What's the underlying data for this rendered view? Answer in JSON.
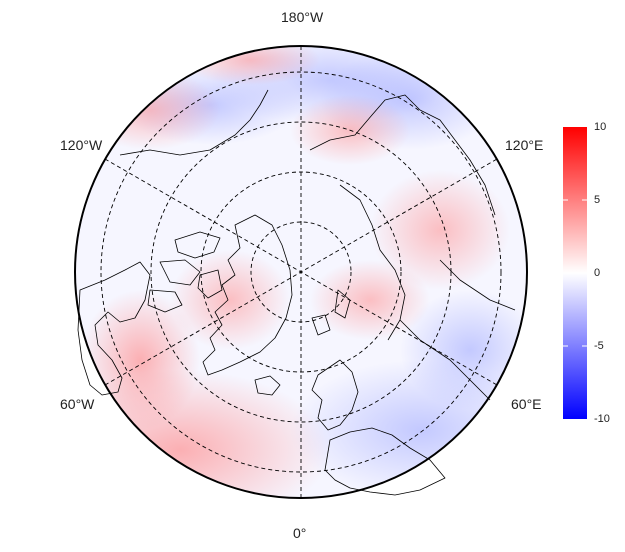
{
  "map": {
    "projection": "north-polar-stereographic",
    "longitude_labels": {
      "top": "180°W",
      "bottom": "0°",
      "upper_left": "120°W",
      "upper_right": "120°E",
      "lower_left": "60°W",
      "lower_right": "60°E"
    },
    "graticule_style": "dashed",
    "colors": {
      "coastline": "#000000",
      "graticule": "#000000",
      "positive": "#ff0000",
      "neutral": "#ffffff",
      "negative": "#0000ff"
    }
  },
  "colorbar": {
    "min": -10,
    "max": 10,
    "ticks": [
      "10",
      "5",
      "0",
      "-5",
      "-10"
    ],
    "tick_values": [
      10,
      5,
      0,
      -5,
      -10
    ],
    "colors": [
      "#ff0000",
      "#ffffff",
      "#0000ff"
    ]
  }
}
